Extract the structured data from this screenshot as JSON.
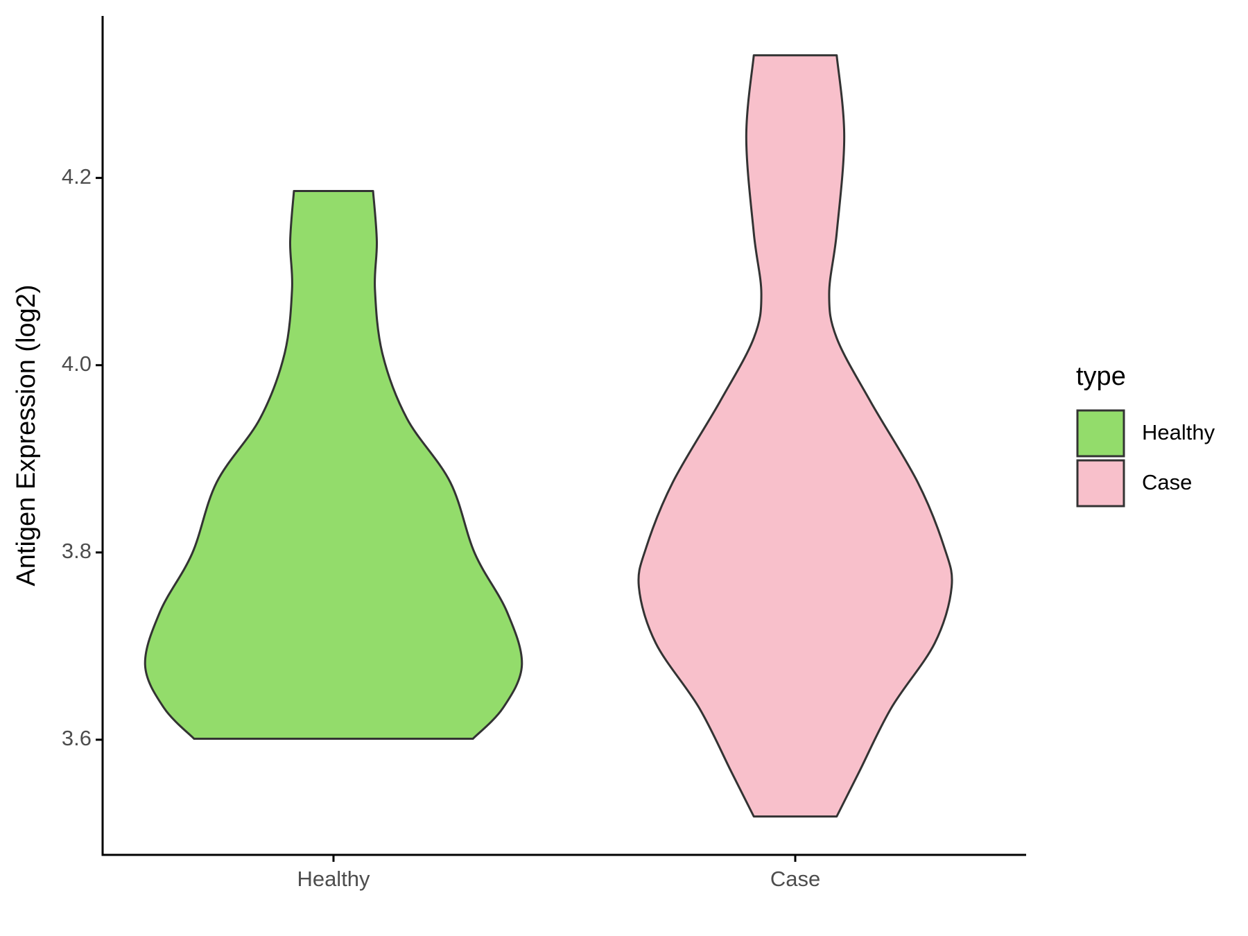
{
  "chart_data": {
    "type": "violin",
    "y_label": "Antigen Expression (log2)",
    "categories": [
      "Healthy",
      "Case"
    ],
    "ylim": [
      3.477,
      4.373
    ],
    "yticks": [
      3.6,
      3.8,
      {
        "value": 4,
        "label": "4.0"
      },
      4.2
    ],
    "legend_title": "type",
    "legend_position": "right",
    "series": [
      {
        "name": "Healthy",
        "color": "#93dc6b",
        "y": [
          4.186,
          4.132,
          4.081,
          4.012,
          3.943,
          3.875,
          3.799,
          3.737,
          3.68,
          3.634,
          3.601
        ],
        "density": [
          0.21,
          0.23,
          0.22,
          0.26,
          0.39,
          0.62,
          0.75,
          0.92,
          1.0,
          0.9,
          0.74
        ]
      },
      {
        "name": "Case",
        "color": "#f8c0cb",
        "y": [
          4.331,
          4.244,
          4.141,
          4.076,
          4.029,
          3.961,
          3.875,
          3.806,
          3.763,
          3.703,
          3.634,
          3.566,
          3.518
        ],
        "density": [
          0.22,
          0.26,
          0.22,
          0.18,
          0.22,
          0.4,
          0.65,
          0.79,
          0.83,
          0.74,
          0.51,
          0.34,
          0.22
        ]
      }
    ]
  }
}
